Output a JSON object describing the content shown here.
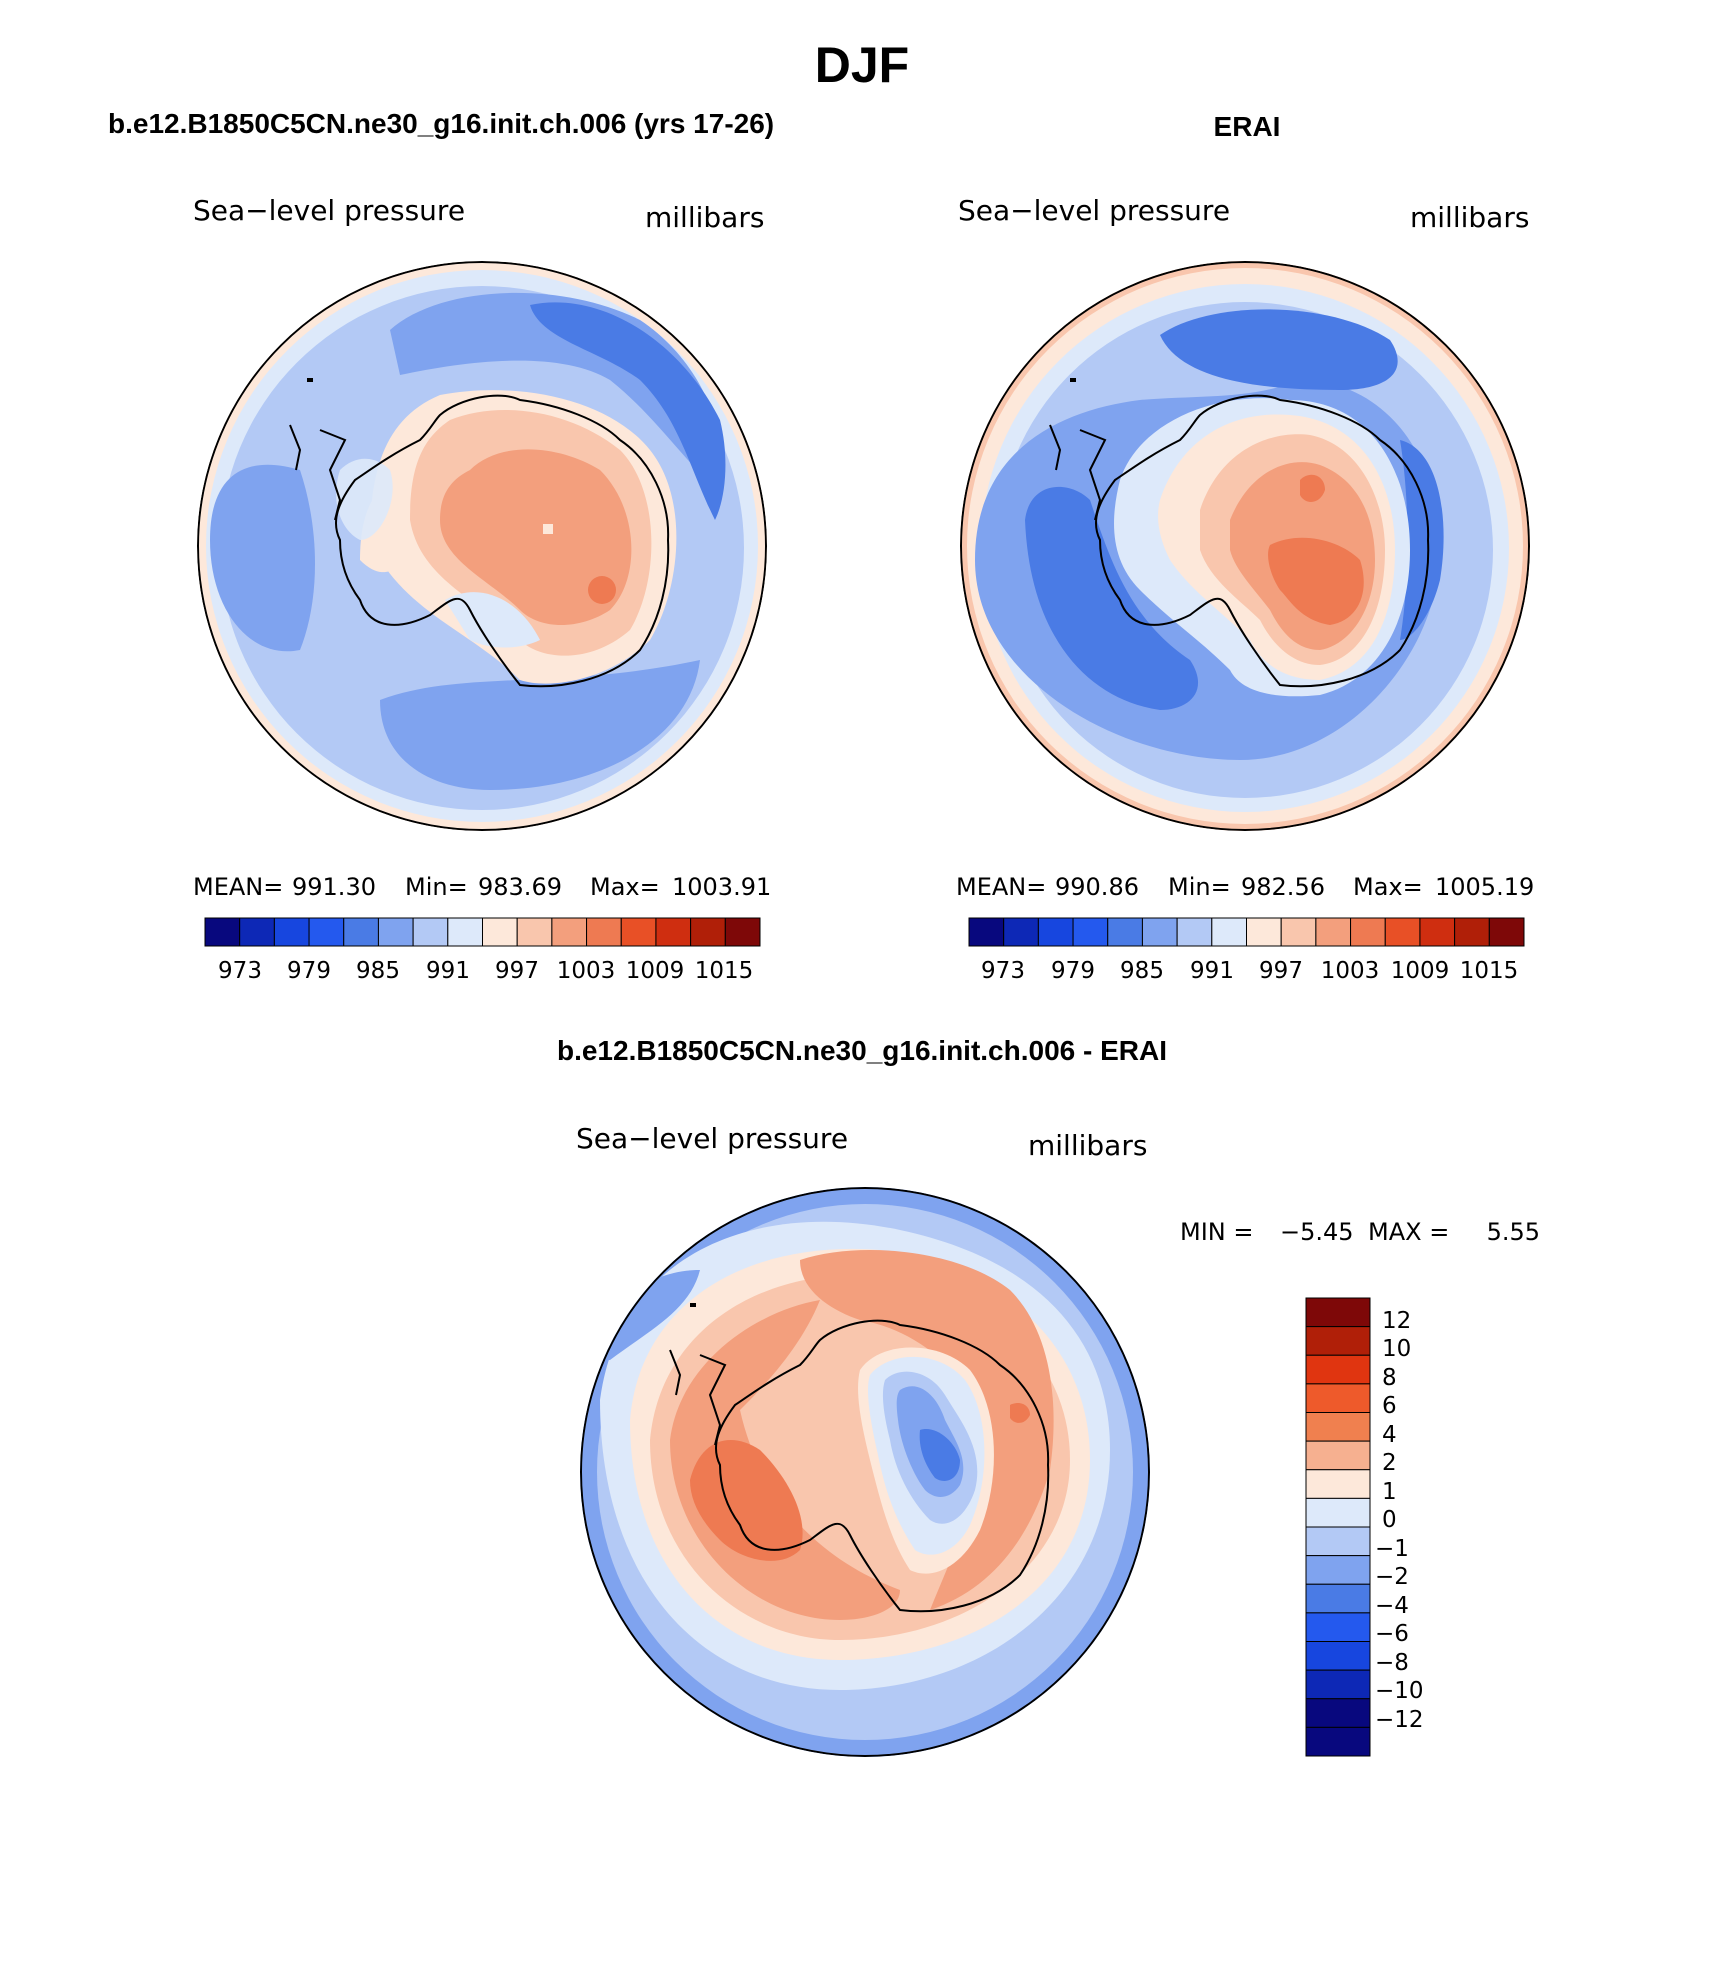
{
  "main_title": "DJF",
  "chart_data": [
    {
      "type": "contour-map",
      "panel_title": "b.e12.B1850C5CN.ne30_g16.init.ch.006 (yrs 17-26)",
      "left_label": "Sea−level pressure",
      "right_label": "millibars",
      "stats": {
        "mean_label": "MEAN=",
        "mean": "991.30",
        "min_label": "Min=",
        "min": "983.69",
        "max_label": "Max=",
        "max": "1003.91"
      },
      "colorbar_tick_labels": [
        "973",
        "979",
        "985",
        "991",
        "997",
        "1003",
        "1009",
        "1015"
      ],
      "colorbar_colors": [
        "#08087e",
        "#0d28b6",
        "#1746df",
        "#2459ee",
        "#4a7be5",
        "#7fa3ef",
        "#b3c9f5",
        "#dde9fa",
        "#fde8da",
        "#f9c6ad",
        "#f39f7d",
        "#ee7a52",
        "#e85026",
        "#cf2e10",
        "#b01f08",
        "#7e0808"
      ]
    },
    {
      "type": "contour-map",
      "panel_title": "ERAI",
      "left_label": "Sea−level pressure",
      "right_label": "millibars",
      "stats": {
        "mean_label": "MEAN=",
        "mean": "990.86",
        "min_label": "Min=",
        "min": "982.56",
        "max_label": "Max=",
        "max": "1005.19"
      },
      "colorbar_tick_labels": [
        "973",
        "979",
        "985",
        "991",
        "997",
        "1003",
        "1009",
        "1015"
      ],
      "colorbar_colors": [
        "#08087e",
        "#0d28b6",
        "#1746df",
        "#2459ee",
        "#4a7be5",
        "#7fa3ef",
        "#b3c9f5",
        "#dde9fa",
        "#fde8da",
        "#f9c6ad",
        "#f39f7d",
        "#ee7a52",
        "#e85026",
        "#cf2e10",
        "#b01f08",
        "#7e0808"
      ]
    },
    {
      "type": "contour-map",
      "panel_title": "b.e12.B1850C5CN.ne30_g16.init.ch.006 - ERAI",
      "left_label": "Sea−level pressure",
      "right_label": "millibars",
      "stats": {
        "min_label": "MIN =",
        "min": "−5.45",
        "max_label": "MAX =",
        "max": "5.55"
      },
      "colorbar_tick_labels": [
        "12",
        "10",
        "8",
        "6",
        "4",
        "2",
        "1",
        "0",
        "−1",
        "−2",
        "−4",
        "−6",
        "−8",
        "−10",
        "−12"
      ],
      "colorbar_colors": [
        "#7e0808",
        "#b01f08",
        "#e03510",
        "#ee5a2b",
        "#f0804f",
        "#f6b090",
        "#fde8da",
        "#dde9fa",
        "#b3c9f5",
        "#7fa3ef",
        "#4a7be5",
        "#2459ee",
        "#1746df",
        "#0d28b6",
        "#08087e",
        "#08087e"
      ]
    }
  ]
}
